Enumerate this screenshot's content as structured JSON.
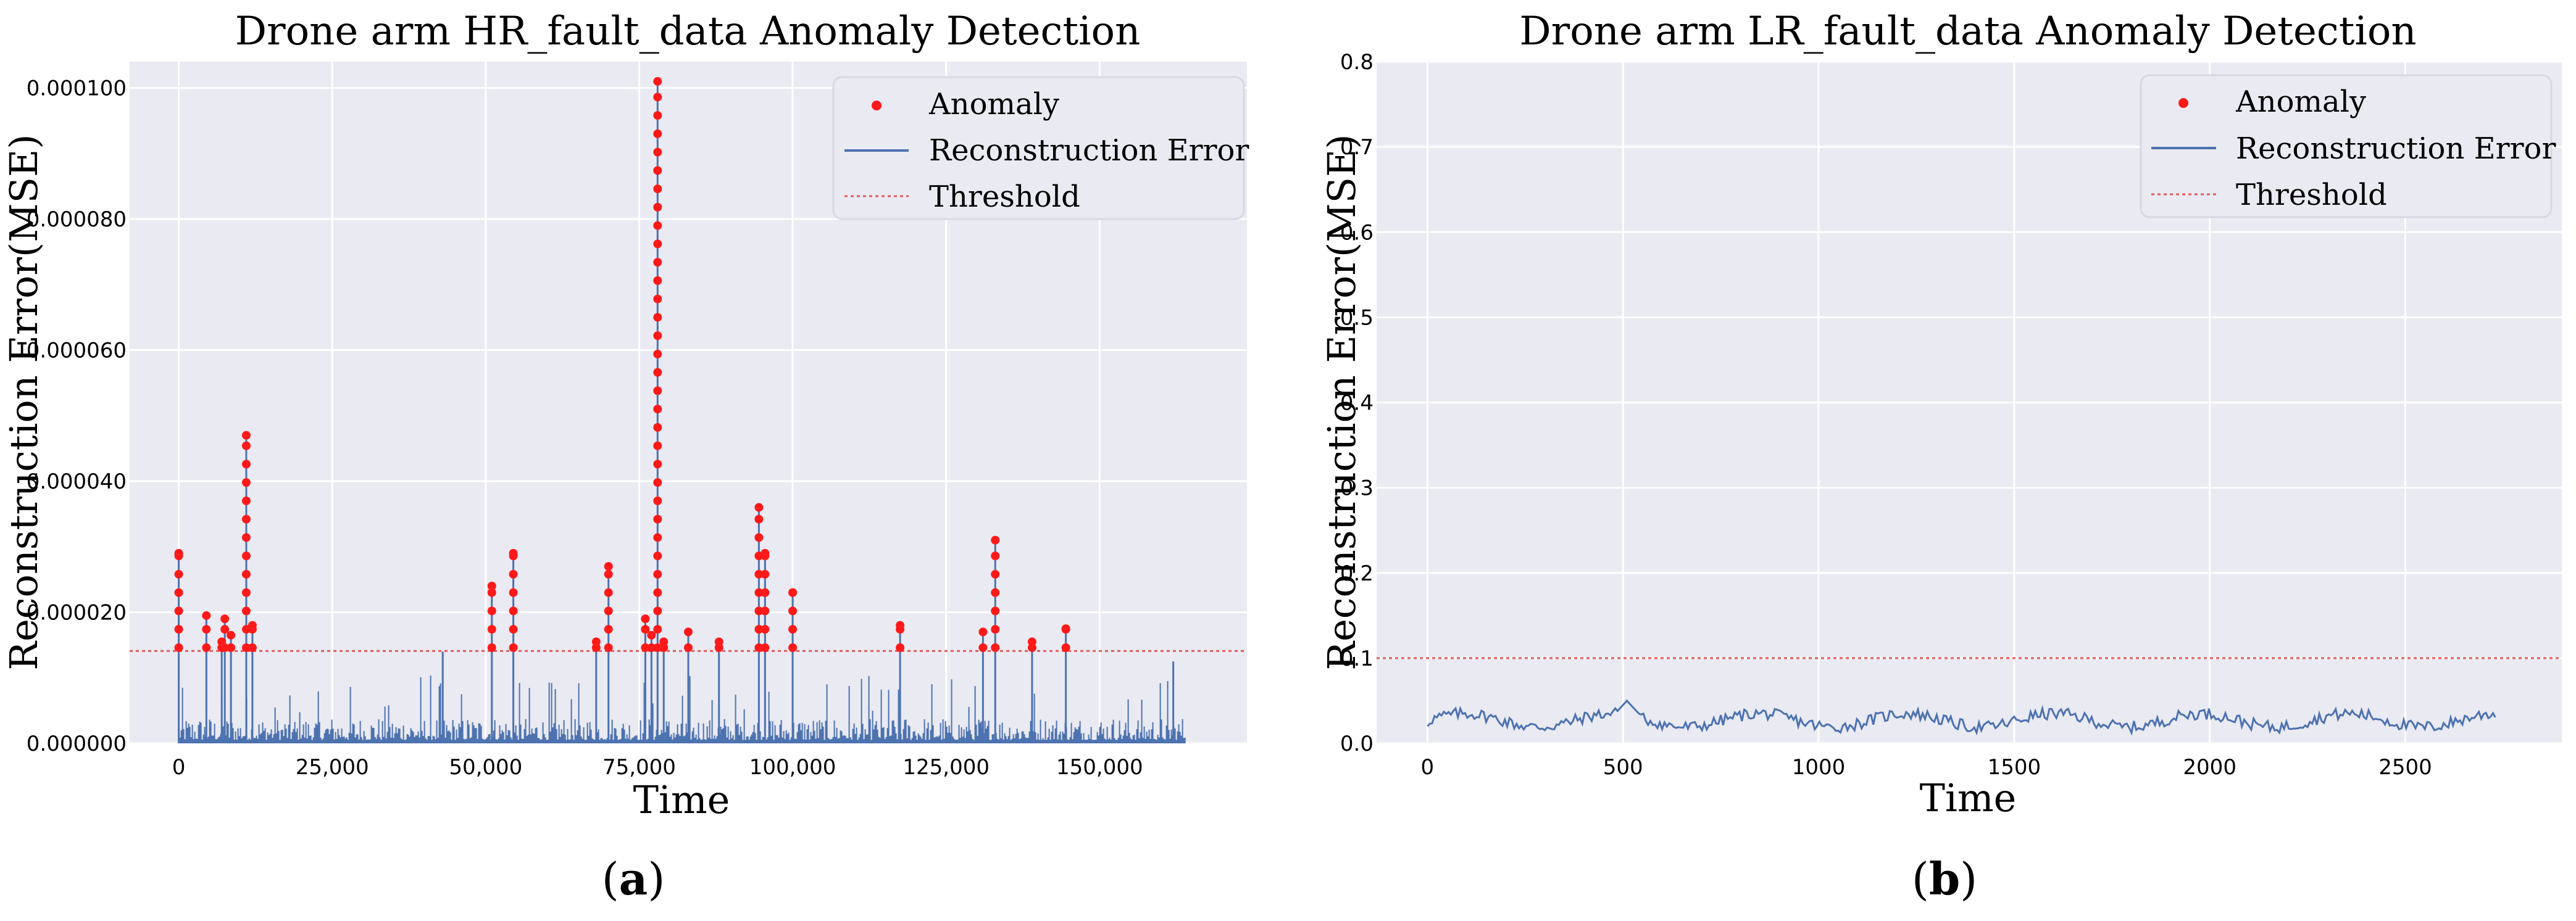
{
  "chart_data": [
    {
      "type": "line",
      "panel_label": "a",
      "title": "Drone arm HR_fault_data Anomaly Detection",
      "xlabel": "Time",
      "ylabel": "Reconstruction Error(MSE)",
      "xlim": [
        -8000,
        174000
      ],
      "ylim": [
        0,
        0.000104
      ],
      "xticks": [
        0,
        25000,
        50000,
        75000,
        100000,
        125000,
        150000
      ],
      "xtick_labels": [
        "0",
        "25,000",
        "50,000",
        "75,000",
        "100,000",
        "125,000",
        "150,000"
      ],
      "yticks": [
        0,
        2e-05,
        4e-05,
        6e-05,
        8e-05,
        0.0001
      ],
      "ytick_labels": [
        "0.000000",
        "0.000020",
        "0.000040",
        "0.000060",
        "0.000080",
        "0.000100"
      ],
      "grid": true,
      "legend": [
        "Anomaly",
        "Reconstruction Error",
        "Threshold"
      ],
      "legend_position": "top-right",
      "threshold": 1.41e-05,
      "series_color": "#4c72b0",
      "anomaly_color": "#ff1a1a",
      "threshold_color": "#e05c5c",
      "baseline_max": 1.05e-05,
      "x_end": 164000,
      "spikes": [
        {
          "x": 0,
          "y": 2.9e-05
        },
        {
          "x": 4500,
          "y": 1.95e-05
        },
        {
          "x": 7000,
          "y": 1.55e-05
        },
        {
          "x": 7500,
          "y": 1.9e-05
        },
        {
          "x": 8500,
          "y": 1.65e-05
        },
        {
          "x": 11000,
          "y": 4.7e-05
        },
        {
          "x": 12000,
          "y": 1.8e-05
        },
        {
          "x": 51000,
          "y": 2.4e-05
        },
        {
          "x": 54500,
          "y": 2.9e-05
        },
        {
          "x": 68000,
          "y": 1.55e-05
        },
        {
          "x": 70000,
          "y": 2.7e-05
        },
        {
          "x": 76000,
          "y": 1.9e-05
        },
        {
          "x": 77000,
          "y": 1.65e-05
        },
        {
          "x": 78000,
          "y": 0.000101
        },
        {
          "x": 79000,
          "y": 1.55e-05
        },
        {
          "x": 83000,
          "y": 1.7e-05
        },
        {
          "x": 88000,
          "y": 1.55e-05
        },
        {
          "x": 94500,
          "y": 3.6e-05
        },
        {
          "x": 95500,
          "y": 2.9e-05
        },
        {
          "x": 100000,
          "y": 2.3e-05
        },
        {
          "x": 117500,
          "y": 1.8e-05
        },
        {
          "x": 131000,
          "y": 1.7e-05
        },
        {
          "x": 133000,
          "y": 3.1e-05
        },
        {
          "x": 139000,
          "y": 1.55e-05
        },
        {
          "x": 144500,
          "y": 1.75e-05
        },
        {
          "x": 43000,
          "y": 1.4e-05
        },
        {
          "x": 162000,
          "y": 1.25e-05
        }
      ]
    },
    {
      "type": "line",
      "panel_label": "b",
      "title": "Drone arm LR_fault_data Anomaly Detection",
      "xlabel": "Time",
      "ylabel": "Reconstruction Error(MSE)",
      "xlim": [
        -130,
        2900
      ],
      "ylim": [
        0,
        0.8
      ],
      "xticks": [
        0,
        500,
        1000,
        1500,
        2000,
        2500
      ],
      "xtick_labels": [
        "0",
        "500",
        "1000",
        "1500",
        "2000",
        "2500"
      ],
      "yticks": [
        0,
        0.1,
        0.2,
        0.3,
        0.4,
        0.5,
        0.6,
        0.7,
        0.8
      ],
      "ytick_labels": [
        "0.0",
        "0.1",
        "0.2",
        "0.3",
        "0.4",
        "0.5",
        "0.6",
        "0.7",
        "0.8"
      ],
      "grid": true,
      "legend": [
        "Anomaly",
        "Reconstruction Error",
        "Threshold"
      ],
      "legend_position": "top-right",
      "threshold": 0.1,
      "series_color": "#4c72b0",
      "anomaly_color": "#ff1a1a",
      "threshold_color": "#e05c5c",
      "x_end": 2730,
      "baseline_mean": 0.027,
      "peak": {
        "x": 510,
        "y": 0.05
      }
    }
  ]
}
